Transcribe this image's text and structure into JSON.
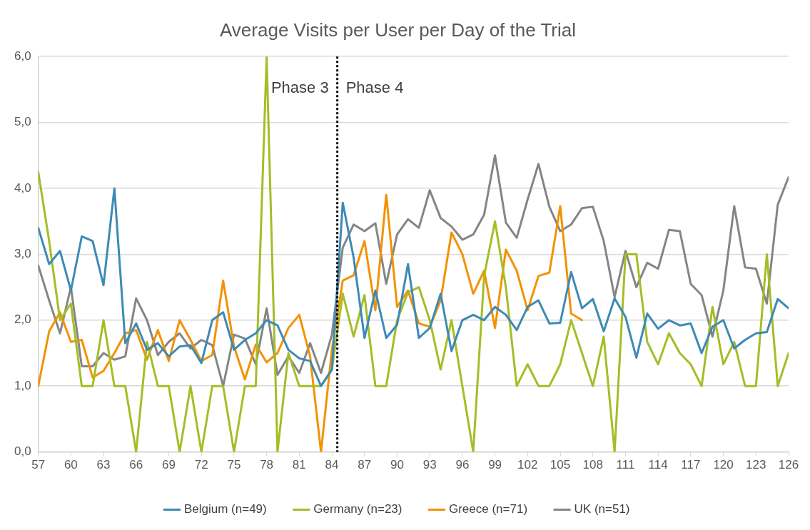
{
  "chart_data": {
    "type": "line",
    "title": "Average Visits per User per Day of the Trial",
    "x": [
      57,
      58,
      59,
      60,
      61,
      62,
      63,
      64,
      65,
      66,
      67,
      68,
      69,
      70,
      71,
      72,
      73,
      74,
      75,
      76,
      77,
      78,
      79,
      80,
      81,
      82,
      83,
      84,
      85,
      86,
      87,
      88,
      89,
      90,
      91,
      92,
      93,
      94,
      95,
      96,
      97,
      98,
      99,
      100,
      101,
      102,
      103,
      104,
      105,
      106,
      107,
      108,
      109,
      110,
      111,
      112,
      113,
      114,
      115,
      116,
      117,
      118,
      119,
      120,
      121,
      122,
      123,
      124,
      125,
      126
    ],
    "series": [
      {
        "name": "Belgium (n=49)",
        "color": "#3d8ab5",
        "values": [
          3.4,
          2.85,
          3.05,
          2.45,
          3.27,
          3.2,
          2.53,
          4.0,
          1.65,
          1.95,
          1.55,
          1.65,
          1.45,
          1.6,
          1.62,
          1.35,
          2.0,
          2.12,
          1.55,
          1.7,
          1.8,
          2.0,
          1.92,
          1.55,
          1.42,
          1.38,
          1.0,
          1.25,
          3.78,
          2.95,
          1.73,
          2.45,
          1.73,
          1.93,
          2.85,
          1.73,
          1.88,
          2.4,
          1.53,
          2.0,
          2.08,
          2.0,
          2.2,
          2.08,
          1.85,
          2.2,
          2.3,
          1.95,
          1.96,
          2.73,
          2.18,
          2.32,
          1.83,
          2.33,
          2.05,
          1.43,
          2.1,
          1.87,
          2.0,
          1.92,
          1.95,
          1.5,
          1.9,
          2.0,
          1.57,
          1.7,
          1.8,
          1.82,
          2.32,
          2.18
        ]
      },
      {
        "name": "Germany (n=23)",
        "color": "#a5bd26",
        "values": [
          4.25,
          3.2,
          2.0,
          2.25,
          1.0,
          1.0,
          2.0,
          1.0,
          1.0,
          0,
          1.67,
          1.0,
          1.0,
          0,
          1.0,
          0,
          1.0,
          1.0,
          0,
          1.0,
          1.0,
          6.0,
          0,
          1.5,
          1.0,
          1.0,
          1.0,
          1.25,
          2.4,
          1.75,
          2.38,
          1.0,
          1.0,
          2.0,
          2.42,
          2.5,
          2.0,
          1.25,
          2.0,
          1.0,
          0,
          2.67,
          3.5,
          2.5,
          1.0,
          1.33,
          1.0,
          1.0,
          1.33,
          2.0,
          1.5,
          1.0,
          1.75,
          0,
          3.0,
          3.0,
          1.67,
          1.33,
          1.8,
          1.5,
          1.33,
          1.0,
          2.2,
          1.33,
          1.67,
          1.0,
          1.0,
          3.0,
          1.0,
          1.5
        ]
      },
      {
        "name": "Greece (n=71)",
        "color": "#f39200",
        "values": [
          1.0,
          1.83,
          2.12,
          1.67,
          1.7,
          1.13,
          1.23,
          1.5,
          1.8,
          1.85,
          1.4,
          1.85,
          1.38,
          2.0,
          1.7,
          1.38,
          1.47,
          2.6,
          1.6,
          1.1,
          1.63,
          1.36,
          1.5,
          1.88,
          2.08,
          1.45,
          0,
          1.55,
          2.6,
          2.68,
          3.2,
          2.15,
          3.9,
          2.2,
          2.45,
          1.95,
          1.9,
          2.3,
          3.33,
          3.0,
          2.4,
          2.75,
          1.88,
          3.07,
          2.75,
          2.15,
          2.67,
          2.72,
          3.73,
          2.1,
          2.0,
          null,
          null,
          null,
          null,
          null,
          null,
          null,
          null,
          null,
          null,
          null,
          null,
          null,
          null,
          null,
          null,
          null,
          null,
          null
        ]
      },
      {
        "name": "UK (n=51)",
        "color": "#858585",
        "values": [
          2.83,
          2.3,
          1.8,
          2.5,
          1.3,
          1.3,
          1.5,
          1.4,
          1.45,
          2.33,
          2.0,
          1.47,
          1.67,
          1.8,
          1.57,
          1.7,
          1.62,
          1.0,
          1.78,
          1.72,
          1.33,
          2.18,
          1.17,
          1.45,
          1.2,
          1.65,
          1.2,
          1.78,
          3.1,
          3.45,
          3.35,
          3.47,
          2.55,
          3.3,
          3.53,
          3.4,
          3.97,
          3.55,
          3.42,
          3.22,
          3.3,
          3.6,
          4.5,
          3.48,
          3.25,
          3.83,
          4.37,
          3.72,
          3.35,
          3.45,
          3.7,
          3.72,
          3.2,
          2.35,
          3.05,
          2.5,
          2.87,
          2.78,
          3.37,
          3.35,
          2.55,
          2.38,
          1.75,
          2.45,
          3.73,
          2.8,
          2.78,
          2.25,
          3.75,
          4.17
        ]
      }
    ],
    "xlim": [
      57,
      126
    ],
    "xticks": [
      57,
      60,
      63,
      66,
      69,
      72,
      75,
      78,
      81,
      84,
      87,
      90,
      93,
      96,
      99,
      102,
      105,
      108,
      111,
      114,
      117,
      120,
      123,
      126
    ],
    "ylim": [
      0,
      6
    ],
    "yticks": [
      {
        "value": 0,
        "label": "0,0"
      },
      {
        "value": 1,
        "label": "1,0"
      },
      {
        "value": 2,
        "label": "2,0"
      },
      {
        "value": 3,
        "label": "3,0"
      },
      {
        "value": 4,
        "label": "4,0"
      },
      {
        "value": 5,
        "label": "5,0"
      },
      {
        "value": 6,
        "label": "6,0"
      }
    ],
    "ref_lines": [
      {
        "axis": "x",
        "value": 84.5,
        "color": "#000000",
        "line_style": "dotted"
      }
    ],
    "annotations": [
      "Phase 3",
      "Phase 4"
    ],
    "grid": "y",
    "legend": "bottom",
    "marker": "none",
    "line_style": "solid"
  }
}
